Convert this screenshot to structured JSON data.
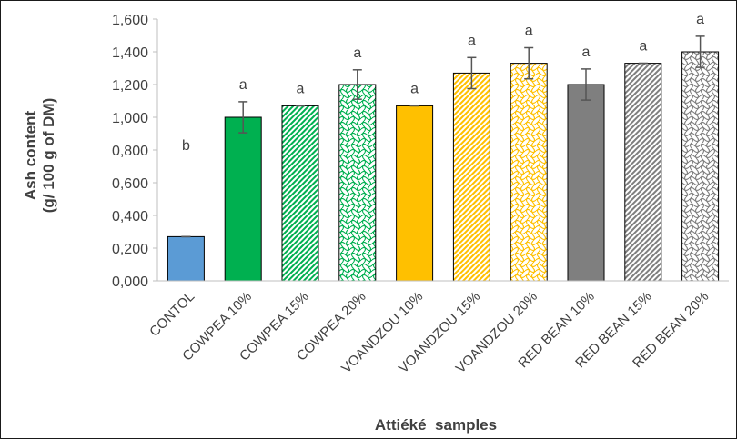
{
  "chart_data": {
    "type": "bar",
    "title": "",
    "xlabel": "Attiéké  samples",
    "ylabel_lines": [
      "Ash content",
      "(g/ 100 g of DM)"
    ],
    "ylim": [
      0,
      1.6
    ],
    "yticks": [
      0,
      0.2,
      0.4,
      0.6,
      0.8,
      1.0,
      1.2,
      1.4,
      1.6
    ],
    "ytick_labels": [
      "0,000",
      "0,200",
      "0,400",
      "0,600",
      "0,800",
      "1,000",
      "1,200",
      "1,400",
      "1,600"
    ],
    "grid": false,
    "legend": "none",
    "categories": [
      "CONTOL",
      "COWPEA 10%",
      "COWPEA 15%",
      "COWPEA 20%",
      "VOANDZOU 10%",
      "VOANDZOU 15%",
      "VOANDZOU 20%",
      "RED BEAN 10%",
      "RED BEAN 15%",
      "RED BEAN 20%"
    ],
    "values": [
      0.27,
      1.0,
      1.07,
      1.2,
      1.07,
      1.27,
      1.33,
      1.2,
      1.33,
      1.4
    ],
    "errors": [
      0.0,
      0.095,
      0.0,
      0.09,
      0.0,
      0.095,
      0.095,
      0.095,
      0.0,
      0.095
    ],
    "significance_letters": [
      "b",
      "a",
      "a",
      "a",
      "a",
      "a",
      "a",
      "a",
      "a",
      "a"
    ],
    "colors": {
      "control": "#5b9bd5",
      "cowpea": "#00b050",
      "voandzou": "#ffc000",
      "red_bean": "#7f7f7f",
      "error_bar": "#555555",
      "axis": "#bfbfbf",
      "text": "#404040"
    },
    "fills": [
      "control-solid",
      "cowpea-solid",
      "cowpea-diagonal",
      "cowpea-wave",
      "voandzou-solid",
      "voandzou-diagonal",
      "voandzou-wave",
      "redbean-solid",
      "redbean-diagonal",
      "redbean-wave"
    ]
  }
}
